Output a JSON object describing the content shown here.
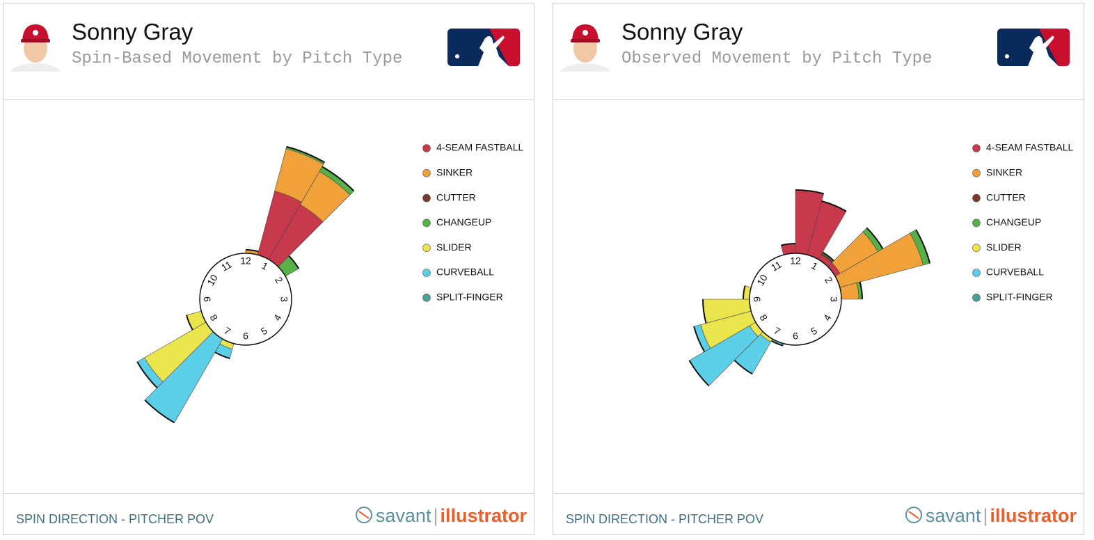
{
  "chart_data": [
    {
      "type": "rose",
      "title": "Sonny Gray",
      "subtitle": "Spin-Based Movement by Pitch Type",
      "caption": "SPIN DIRECTION - PITCHER POV",
      "x": [
        0.25,
        0.75,
        1.25,
        1.75,
        6.75,
        7.25,
        7.75,
        8.25
      ],
      "xlim": [
        0,
        12
      ],
      "xticks": [
        1,
        2,
        3,
        4,
        5,
        6,
        7,
        8,
        9,
        10,
        11,
        12
      ],
      "series": [
        {
          "name": "4-SEAM FASTBALL",
          "color": "#c83a4b",
          "values": [
            null,
            95,
            91,
            null,
            null,
            null,
            null,
            null
          ]
        },
        {
          "name": "SINKER",
          "color": "#f1a13a",
          "values": [
            5,
            63,
            55,
            null,
            null,
            null,
            null,
            null
          ]
        },
        {
          "name": "CUTTER",
          "color": "#7a3b2a",
          "values": [
            null,
            null,
            null,
            null,
            null,
            null,
            null,
            null
          ]
        },
        {
          "name": "CHANGEUP",
          "color": "#57b147",
          "values": [
            null,
            3,
            8,
            22,
            null,
            null,
            null,
            null
          ]
        },
        {
          "name": "SLIDER",
          "color": "#ebe54d",
          "values": [
            null,
            null,
            null,
            null,
            8,
            null,
            102,
            22
          ]
        },
        {
          "name": "CURVEBALL",
          "color": "#5ccfe8",
          "values": [
            null,
            null,
            null,
            null,
            14,
            139,
            12,
            null
          ]
        },
        {
          "name": "SPLIT-FINGER",
          "color": "#4a9e9c",
          "values": [
            null,
            null,
            null,
            null,
            null,
            null,
            null,
            null
          ]
        }
      ]
    },
    {
      "type": "rose",
      "title": "Sonny Gray",
      "subtitle": "Observed Movement by Pitch Type",
      "caption": "SPIN DIRECTION - PITCHER POV",
      "x": [
        0.25,
        0.75,
        1.25,
        1.75,
        2.25,
        2.75,
        6.75,
        7.25,
        7.75,
        8.25,
        8.75,
        9.25,
        11.75
      ],
      "xlim": [
        0,
        12
      ],
      "xticks": [
        1,
        2,
        3,
        4,
        5,
        6,
        7,
        8,
        9,
        10,
        11,
        12
      ],
      "series": [
        {
          "name": "4-SEAM FASTBALL",
          "color": "#c83a4b",
          "values": [
            91,
            80,
            8,
            8,
            null,
            null,
            null,
            null,
            null,
            null,
            null,
            null,
            14
          ]
        },
        {
          "name": "SINKER",
          "color": "#f1a13a",
          "values": [
            null,
            null,
            null,
            63,
            124,
            25,
            null,
            null,
            null,
            null,
            null,
            null,
            null
          ]
        },
        {
          "name": "CUTTER",
          "color": "#7a3b2a",
          "values": [
            null,
            null,
            2,
            null,
            null,
            null,
            null,
            null,
            null,
            null,
            null,
            null,
            null
          ]
        },
        {
          "name": "CHANGEUP",
          "color": "#57b147",
          "values": [
            null,
            null,
            2,
            8,
            10,
            5,
            null,
            null,
            null,
            null,
            null,
            null,
            null
          ]
        },
        {
          "name": "SLIDER",
          "color": "#ebe54d",
          "values": [
            null,
            null,
            null,
            null,
            null,
            null,
            null,
            5,
            10,
            75,
            67,
            9,
            null
          ]
        },
        {
          "name": "CURVEBALL",
          "color": "#5ccfe8",
          "values": [
            null,
            null,
            null,
            null,
            null,
            null,
            3,
            53,
            100,
            10,
            null,
            null,
            null
          ]
        },
        {
          "name": "SPLIT-FINGER",
          "color": "#4a9e9c",
          "values": [
            null,
            null,
            null,
            null,
            null,
            null,
            null,
            null,
            null,
            null,
            null,
            null,
            null
          ]
        }
      ]
    }
  ],
  "brand": {
    "first": "savant",
    "second": "illustrator"
  }
}
